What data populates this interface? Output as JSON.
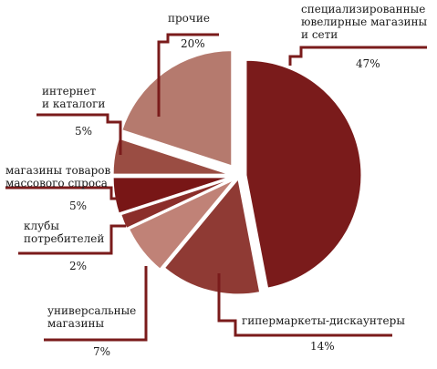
{
  "chart_data": {
    "type": "pie",
    "title": "",
    "slices": [
      {
        "label": [
          "специализированные",
          "ювелирные магазины",
          "и сети"
        ],
        "percent_text": "47%",
        "value": 47,
        "color": "#7a1b1b"
      },
      {
        "label": [
          "гипермаркеты-дискаунтеры"
        ],
        "percent_text": "14%",
        "value": 14,
        "color": "#8f3a34"
      },
      {
        "label": [
          "универсальные",
          "магазины"
        ],
        "percent_text": "7%",
        "value": 7,
        "color": "#c08277"
      },
      {
        "label": [
          "клубы",
          "потребителей"
        ],
        "percent_text": "2%",
        "value": 2,
        "color": "#8b2e2a"
      },
      {
        "label": [
          "магазины товаров",
          "массового спроса"
        ],
        "percent_text": "5%",
        "value": 5,
        "color": "#781616"
      },
      {
        "label": [
          "интернет",
          "и каталоги"
        ],
        "percent_text": "5%",
        "value": 5,
        "color": "#9a4d43"
      },
      {
        "label": [
          "прочие"
        ],
        "percent_text": "20%",
        "value": 20,
        "color": "#b57a6e"
      }
    ],
    "leader_color": "#7a1b1b"
  }
}
